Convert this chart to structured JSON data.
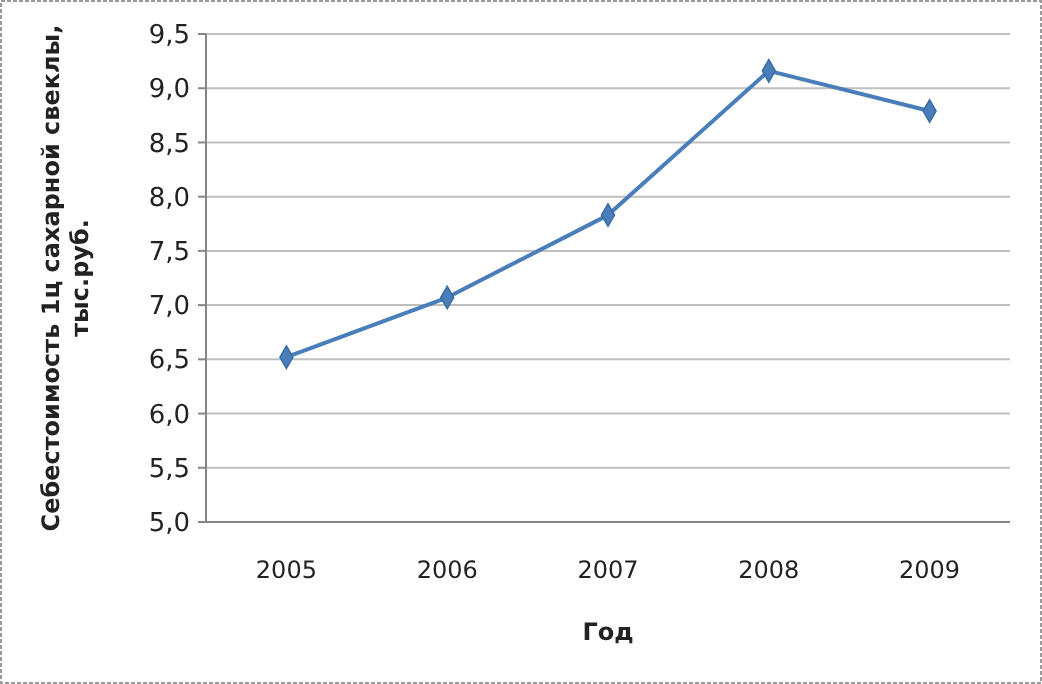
{
  "chart_data": {
    "type": "line",
    "xlabel": "Год",
    "ylabel": "Себестоимость 1ц сахарной свеклы, тыс.руб.",
    "categories": [
      "2005",
      "2006",
      "2007",
      "2008",
      "2009"
    ],
    "series": [
      {
        "color": "#4a7ebb",
        "values": [
          6.52,
          7.07,
          7.83,
          9.16,
          8.79
        ]
      }
    ],
    "ylim": [
      5,
      9.5
    ],
    "yticks": [
      {
        "value": 5,
        "label": "5,0"
      },
      {
        "value": 5.5,
        "label": "5,5"
      },
      {
        "value": 6,
        "label": "6,0"
      },
      {
        "value": 6.5,
        "label": "6,5"
      },
      {
        "value": 7,
        "label": "7,0"
      },
      {
        "value": 7.5,
        "label": "7,5"
      },
      {
        "value": 8,
        "label": "8,0"
      },
      {
        "value": 8.5,
        "label": "8,5"
      },
      {
        "value": 9,
        "label": "9,0"
      },
      {
        "value": 9.5,
        "label": "9,5"
      }
    ],
    "grid": "y",
    "marker": "diamond",
    "line_style": "solid"
  }
}
